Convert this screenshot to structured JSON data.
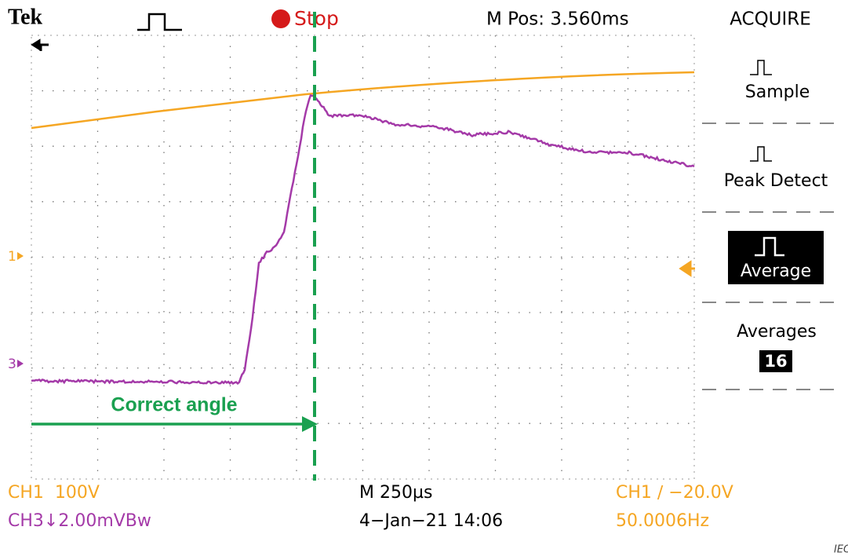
{
  "header": {
    "brand": "Tek",
    "status": "Stop",
    "position": "M Pos: 3.560ms"
  },
  "menu": {
    "title": "ACQUIRE",
    "items": [
      "Sample",
      "Peak Detect",
      "Average",
      "Averages"
    ],
    "averages_count": "16"
  },
  "markers": {
    "ch1": "1",
    "ch3": "3"
  },
  "annotation": "Correct angle",
  "footer": {
    "ch1_scale": "CH1  100V",
    "ch3_scale": "CH3↓2.00mVBw",
    "timebase": "M 250µs",
    "date": "4−Jan−21 14:06",
    "trigger": "CH1 ∕ −20.0V",
    "frequency": "50.0006Hz"
  },
  "credit": "IEC"
}
